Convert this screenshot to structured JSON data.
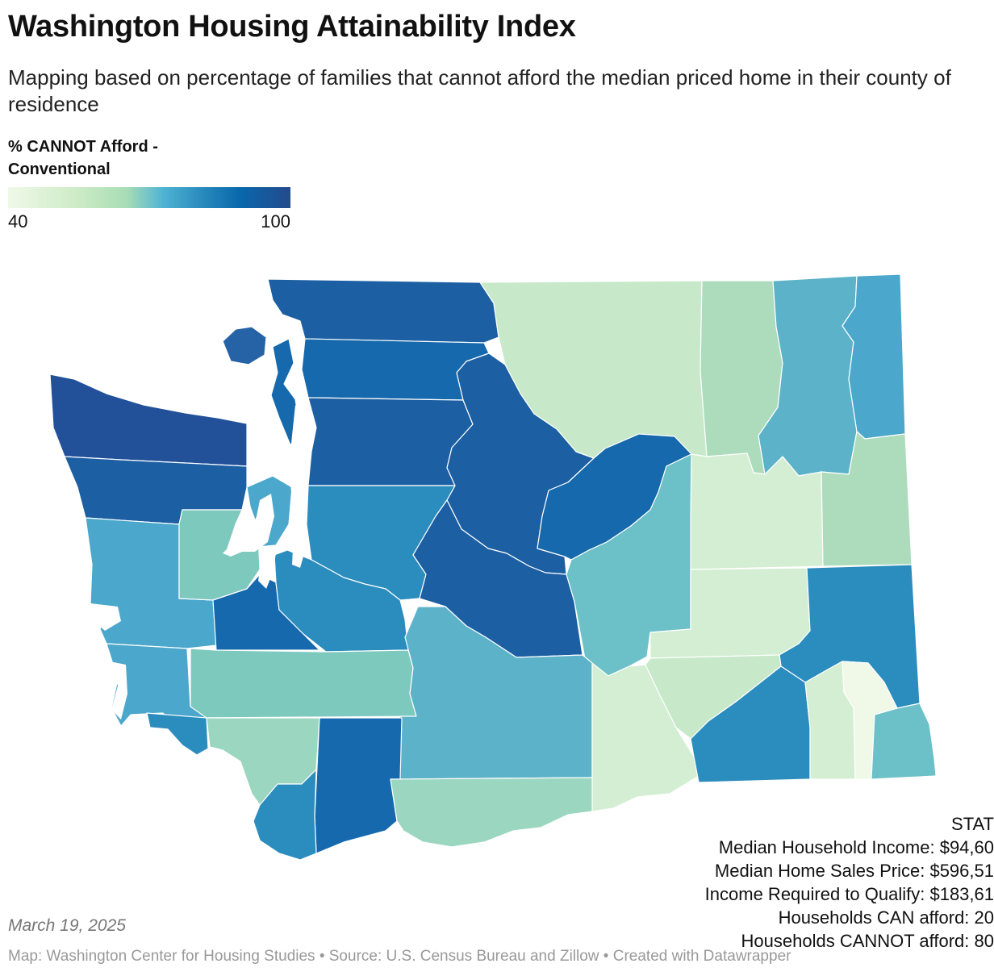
{
  "title": "Washington Housing Attainability Index",
  "subtitle": "Mapping based on percentage of families that cannot afford the median priced home in their county of residence",
  "legend": {
    "title": "% CANNOT Afford - Conventional",
    "min_label": "40",
    "max_label": "100",
    "colors": [
      "#f0f9e8",
      "#ccebc5",
      "#a8ddb5",
      "#4eb3d3",
      "#2b8cbe",
      "#0868ac",
      "#254a8c"
    ]
  },
  "stats_box": {
    "lines": [
      "STAT",
      "Median Household Income: $94,60",
      "Median Home Sales Price: $596,51",
      "Income Required to Qualify: $183,61",
      "Households CAN afford: 20",
      "Households CANNOT afford: 80"
    ]
  },
  "date": "March 19, 2025",
  "footer": "Map: Washington Center for Housing Studies • Source: U.S. Census Bureau and Zillow • Created with Datawrapper",
  "map": {
    "water_color": "#ffffff",
    "border_color": "#ffffff",
    "regions": [
      {
        "id": "san-juan",
        "fill": "#2563a6"
      },
      {
        "id": "whatcom",
        "fill": "#1c5fa3"
      },
      {
        "id": "okanogan",
        "fill": "#c7e8c9"
      },
      {
        "id": "ferry",
        "fill": "#addcbd"
      },
      {
        "id": "stevens",
        "fill": "#5cb3c9"
      },
      {
        "id": "pend-oreille",
        "fill": "#4ba7cb"
      },
      {
        "id": "clallam",
        "fill": "#22519a"
      },
      {
        "id": "skagit",
        "fill": "#1569ac"
      },
      {
        "id": "island",
        "fill": "#1569ac"
      },
      {
        "id": "snohomish",
        "fill": "#1c5fa3"
      },
      {
        "id": "chelan",
        "fill": "#1c5fa3"
      },
      {
        "id": "douglas",
        "fill": "#1569ac"
      },
      {
        "id": "lincoln",
        "fill": "#d3eed2"
      },
      {
        "id": "spokane",
        "fill": "#addcbd"
      },
      {
        "id": "jefferson",
        "fill": "#1c5fa3"
      },
      {
        "id": "kitsap",
        "fill": "#4ba7cb"
      },
      {
        "id": "king",
        "fill": "#2b8cbe"
      },
      {
        "id": "kittitas",
        "fill": "#1c5fa3"
      },
      {
        "id": "grant",
        "fill": "#6cc0c8"
      },
      {
        "id": "adams",
        "fill": "#d3eed2"
      },
      {
        "id": "whitman",
        "fill": "#2b8cbe"
      },
      {
        "id": "grays-harbor",
        "fill": "#4ba7cb"
      },
      {
        "id": "mason",
        "fill": "#7ec9be"
      },
      {
        "id": "thurston",
        "fill": "#1569ac"
      },
      {
        "id": "pierce",
        "fill": "#2b8cbe"
      },
      {
        "id": "pacific",
        "fill": "#4ba7cb"
      },
      {
        "id": "lewis",
        "fill": "#7ec9be"
      },
      {
        "id": "yakima",
        "fill": "#5cb3c9"
      },
      {
        "id": "benton",
        "fill": "#d3eed2"
      },
      {
        "id": "franklin",
        "fill": "#c7e8c9"
      },
      {
        "id": "walla-walla",
        "fill": "#2b8cbe"
      },
      {
        "id": "columbia",
        "fill": "#d3eed2"
      },
      {
        "id": "garfield",
        "fill": "#f0f9e8"
      },
      {
        "id": "asotin",
        "fill": "#6cc0c8"
      },
      {
        "id": "wahkiakum",
        "fill": "#2b8cbe"
      },
      {
        "id": "cowlitz",
        "fill": "#9bd6c0"
      },
      {
        "id": "skamania",
        "fill": "#1569ac"
      },
      {
        "id": "klickitat",
        "fill": "#9bd6c0"
      },
      {
        "id": "clark",
        "fill": "#2b8cbe"
      }
    ]
  }
}
